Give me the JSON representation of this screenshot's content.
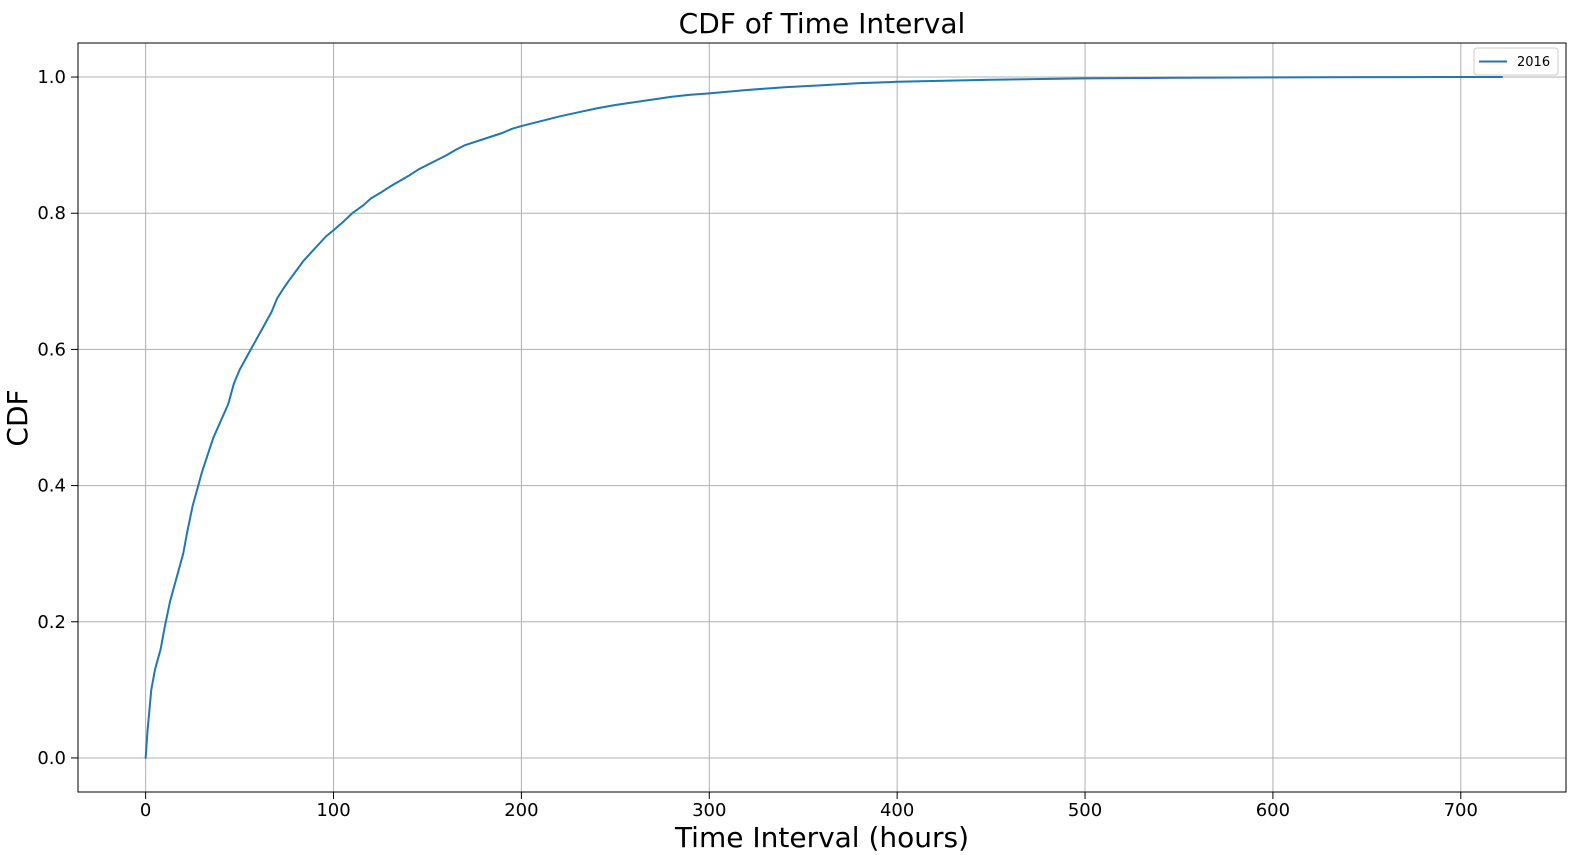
{
  "chart_data": {
    "type": "line",
    "title": "CDF of Time Interval",
    "xlabel": "Time Interval (hours)",
    "ylabel": "CDF",
    "xlim": [
      -36,
      756
    ],
    "ylim": [
      -0.05,
      1.05
    ],
    "xticks": [
      0,
      100,
      200,
      300,
      400,
      500,
      600,
      700
    ],
    "yticks": [
      0.0,
      0.2,
      0.4,
      0.6,
      0.8,
      1.0
    ],
    "xtick_labels": [
      "0",
      "100",
      "200",
      "300",
      "400",
      "500",
      "600",
      "700"
    ],
    "ytick_labels": [
      "0.0",
      "0.2",
      "0.4",
      "0.6",
      "0.8",
      "1.0"
    ],
    "grid": true,
    "legend_position": "top-right",
    "series": [
      {
        "name": "2016",
        "color": "#1f77b4",
        "x": [
          0,
          1,
          2,
          3,
          5,
          8,
          10,
          13,
          16,
          20,
          22,
          25,
          28,
          30,
          33,
          36,
          40,
          44,
          47,
          50,
          53,
          56,
          60,
          63,
          67,
          70,
          73,
          76,
          80,
          84,
          88,
          93,
          96,
          100,
          105,
          110,
          116,
          120,
          125,
          130,
          135,
          140,
          145,
          150,
          155,
          160,
          165,
          170,
          180,
          190,
          195,
          200,
          210,
          220,
          230,
          240,
          250,
          260,
          270,
          280,
          290,
          300,
          320,
          340,
          360,
          380,
          400,
          450,
          500,
          550,
          600,
          650,
          700,
          722
        ],
        "y": [
          0.0,
          0.04,
          0.07,
          0.1,
          0.13,
          0.16,
          0.19,
          0.23,
          0.26,
          0.3,
          0.33,
          0.37,
          0.4,
          0.42,
          0.445,
          0.47,
          0.495,
          0.52,
          0.55,
          0.57,
          0.585,
          0.6,
          0.62,
          0.635,
          0.655,
          0.675,
          0.688,
          0.7,
          0.715,
          0.73,
          0.742,
          0.757,
          0.766,
          0.775,
          0.787,
          0.8,
          0.812,
          0.822,
          0.83,
          0.839,
          0.847,
          0.855,
          0.864,
          0.871,
          0.878,
          0.885,
          0.893,
          0.9,
          0.909,
          0.918,
          0.924,
          0.928,
          0.935,
          0.942,
          0.948,
          0.954,
          0.959,
          0.963,
          0.967,
          0.971,
          0.974,
          0.976,
          0.981,
          0.985,
          0.988,
          0.991,
          0.993,
          0.996,
          0.998,
          0.999,
          0.9995,
          0.9998,
          1.0,
          1.0
        ]
      }
    ]
  }
}
